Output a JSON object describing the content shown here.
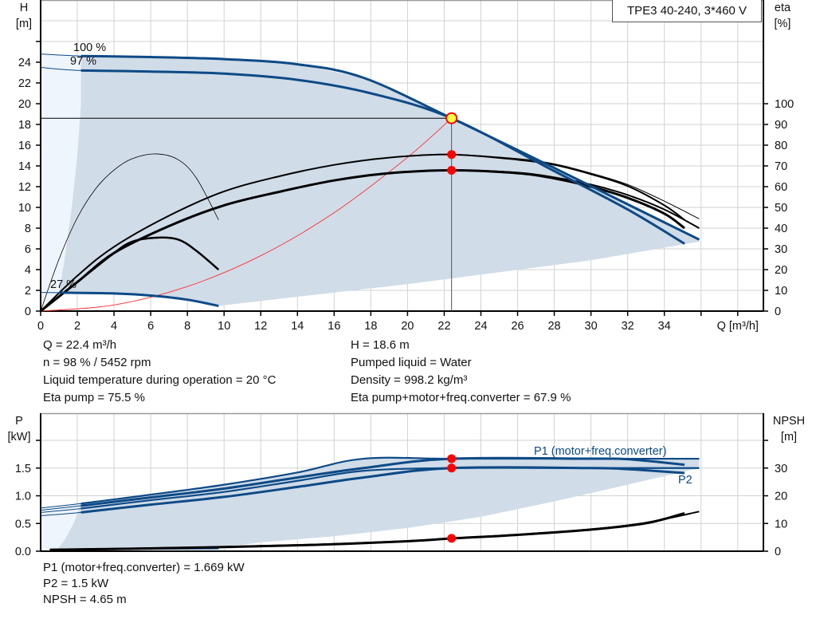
{
  "colors": {
    "head_curve": "#0d4a86",
    "eta_curve": "#000000",
    "system_curve": "#ff3030",
    "duty_point": "#ff0000",
    "duty_point_fill_top": "#ffff40",
    "operating_area": "#d0dce8",
    "extended_area": "#eef5fc",
    "grid": "#d2d2d2"
  },
  "chart_data": [
    {
      "type": "line",
      "title": "TPE3 40-240, 3*460 V",
      "xlabel": "Q [m³/h]",
      "ylabel_name": "H",
      "ylabel_unit": "[m]",
      "y2label_name": "eta",
      "y2label_unit": "[%]",
      "xlim": [
        0,
        39.4
      ],
      "ylim": [
        0,
        30
      ],
      "y2lim": [
        0,
        150
      ],
      "grid": true,
      "xticks": [
        0,
        2,
        4,
        6,
        8,
        10,
        12,
        14,
        16,
        18,
        20,
        22,
        24,
        26,
        28,
        30,
        32,
        34
      ],
      "yticks": [
        0,
        2,
        4,
        6,
        8,
        10,
        12,
        14,
        16,
        18,
        20,
        22,
        24
      ],
      "y2ticks": [
        0,
        10,
        20,
        30,
        40,
        50,
        60,
        70,
        80,
        90,
        100
      ],
      "head_curves": [
        {
          "label": "100 %",
          "points": [
            [
              0,
              24.8
            ],
            [
              2.2,
              24.6
            ],
            [
              6,
              24.5
            ],
            [
              10,
              24.3
            ],
            [
              14,
              23.8
            ],
            [
              17.6,
              22.5
            ],
            [
              22.4,
              18.6
            ],
            [
              28,
              13.8
            ],
            [
              32,
              10.3
            ],
            [
              35.9,
              6.9
            ]
          ]
        },
        {
          "label": "97 %",
          "points": [
            [
              0,
              23.5
            ],
            [
              2.2,
              23.2
            ],
            [
              6,
              23.1
            ],
            [
              10,
              22.9
            ],
            [
              14,
              22.3
            ],
            [
              18,
              21.0
            ],
            [
              22.4,
              18.6
            ],
            [
              28,
              13.5
            ],
            [
              32,
              9.8
            ],
            [
              35.1,
              6.5
            ]
          ]
        },
        {
          "label": "27 %",
          "points": [
            [
              0,
              1.8
            ],
            [
              1,
              1.78
            ],
            [
              4,
              1.7
            ],
            [
              6,
              1.5
            ],
            [
              8,
              1.1
            ],
            [
              9.7,
              0.5
            ]
          ]
        }
      ],
      "eta_curves": [
        {
          "points": [
            [
              0,
              0
            ],
            [
              2,
              17
            ],
            [
              4,
              31
            ],
            [
              7,
              46
            ],
            [
              10,
              57.7
            ],
            [
              13,
              65
            ],
            [
              16,
              70.5
            ],
            [
              19,
              74
            ],
            [
              22.4,
              75.5
            ],
            [
              26,
              73.5
            ],
            [
              28,
              71
            ],
            [
              30,
              66.5
            ],
            [
              32,
              61
            ],
            [
              34,
              53
            ],
            [
              35.9,
              44.5
            ]
          ]
        },
        {
          "points": [
            [
              0,
              0
            ],
            [
              2,
              17
            ],
            [
              4,
              31
            ],
            [
              7,
              46
            ],
            [
              10,
              57.7
            ],
            [
              13,
              65
            ],
            [
              16,
              70.5
            ],
            [
              19,
              74
            ],
            [
              22.4,
              75.5
            ],
            [
              26,
              73
            ],
            [
              28,
              70.5
            ],
            [
              30,
              66
            ],
            [
              32,
              60.3
            ],
            [
              34,
              51
            ],
            [
              35.1,
              44
            ]
          ]
        },
        {
          "points": [
            [
              0,
              0
            ],
            [
              2,
              14
            ],
            [
              4,
              28
            ],
            [
              7,
              41
            ],
            [
              10,
              51
            ],
            [
              13,
              57.5
            ],
            [
              16,
              63
            ],
            [
              19,
              66.5
            ],
            [
              22.4,
              67.9
            ],
            [
              26,
              66.5
            ],
            [
              28,
              64
            ],
            [
              30,
              60
            ],
            [
              32,
              54.6
            ],
            [
              34,
              47
            ],
            [
              35.1,
              40
            ]
          ]
        },
        {
          "points": [
            [
              0,
              0
            ],
            [
              2,
              14
            ],
            [
              4,
              28
            ],
            [
              7,
              41
            ],
            [
              10,
              51
            ],
            [
              13,
              57.5
            ],
            [
              16,
              63
            ],
            [
              19,
              66.5
            ],
            [
              22.4,
              67.9
            ],
            [
              26,
              66.8
            ],
            [
              28,
              64.5
            ],
            [
              30,
              61
            ],
            [
              32,
              56
            ],
            [
              34,
              49
            ],
            [
              35.9,
              40
            ]
          ]
        },
        {
          "points": [
            [
              0,
              0
            ],
            [
              1,
              25
            ],
            [
              2,
              45
            ],
            [
              3,
              59
            ],
            [
              4,
              68
            ],
            [
              5,
              73.5
            ],
            [
              6.3,
              75.8
            ],
            [
              7.5,
              73
            ],
            [
              8.5,
              64
            ],
            [
              9.7,
              44
            ]
          ]
        },
        {
          "points": [
            [
              0,
              0
            ],
            [
              2,
              14
            ],
            [
              4,
              28
            ],
            [
              5,
              33.5
            ],
            [
              6.3,
              35.4
            ],
            [
              7.5,
              34.5
            ],
            [
              8.5,
              29
            ],
            [
              9.7,
              20
            ]
          ]
        }
      ],
      "system_curve": {
        "points": [
          [
            0,
            0
          ],
          [
            4,
            0.59
          ],
          [
            8,
            2.37
          ],
          [
            12,
            5.34
          ],
          [
            16,
            9.49
          ],
          [
            20,
            14.83
          ],
          [
            22.4,
            18.6
          ]
        ]
      },
      "operating_area": [
        [
          2.2,
          24.6
        ],
        [
          6,
          24.5
        ],
        [
          10,
          24.3
        ],
        [
          14,
          23.8
        ],
        [
          17.6,
          22.5
        ],
        [
          22.4,
          18.6
        ],
        [
          28,
          13.8
        ],
        [
          32,
          10.3
        ],
        [
          35.9,
          6.9
        ],
        [
          35.9,
          6.7
        ],
        [
          30,
          4.9
        ],
        [
          20,
          2.6
        ],
        [
          9.9,
          0.55
        ],
        [
          9.7,
          0.5
        ],
        [
          8,
          1.1
        ],
        [
          6,
          1.5
        ],
        [
          4,
          1.7
        ],
        [
          1,
          1.75
        ],
        [
          1.3,
          5
        ],
        [
          1.7,
          10
        ],
        [
          2.0,
          15
        ],
        [
          2.2,
          20
        ],
        [
          2.2,
          23.2
        ]
      ],
      "extended_area": [
        [
          0,
          0
        ],
        [
          0,
          24.8
        ],
        [
          2.2,
          24.6
        ],
        [
          2.2,
          20
        ],
        [
          2.0,
          15
        ],
        [
          1.7,
          10
        ],
        [
          1.3,
          5
        ],
        [
          1,
          1.75
        ],
        [
          0.6,
          1.2
        ]
      ],
      "duty_point": {
        "Q": 22.4,
        "H": 18.6,
        "eta": [
          75.5,
          67.9
        ]
      }
    },
    {
      "type": "line",
      "xlabel": "",
      "ylabel_name": "P",
      "ylabel_unit": "[kW]",
      "y2label_name": "NPSH",
      "y2label_unit": "[m]",
      "xlim": [
        0,
        39.4
      ],
      "ylim": [
        0,
        2.49
      ],
      "y2lim": [
        0,
        49.8
      ],
      "grid": true,
      "yticks": [
        "0.0",
        "0.5",
        "1.0",
        "1.5"
      ],
      "y2ticks": [
        0,
        10,
        20,
        30
      ],
      "power_curves": [
        {
          "label": "P1 (motor+freq.converter)",
          "points": [
            [
              0,
              0.78
            ],
            [
              2.2,
              0.86
            ],
            [
              6,
              1.02
            ],
            [
              10,
              1.2
            ],
            [
              14,
              1.42
            ],
            [
              17.6,
              1.669
            ],
            [
              22.4,
              1.669
            ],
            [
              30,
              1.669
            ],
            [
              35.9,
              1.669
            ]
          ]
        },
        {
          "points": [
            [
              0,
              0.74
            ],
            [
              2.2,
              0.82
            ],
            [
              6,
              0.97
            ],
            [
              10,
              1.13
            ],
            [
              14,
              1.33
            ],
            [
              17.6,
              1.5
            ],
            [
              22.4,
              1.669
            ],
            [
              30,
              1.669
            ],
            [
              32,
              1.66
            ],
            [
              35.1,
              1.56
            ]
          ]
        },
        {
          "label": "P2",
          "points": [
            [
              0,
              0.7
            ],
            [
              2.2,
              0.77
            ],
            [
              6,
              0.92
            ],
            [
              10,
              1.07
            ],
            [
              14,
              1.27
            ],
            [
              17.6,
              1.45
            ],
            [
              22.4,
              1.5
            ],
            [
              30,
              1.5
            ],
            [
              35.9,
              1.5
            ]
          ]
        },
        {
          "points": [
            [
              0,
              0.64
            ],
            [
              2.2,
              0.7
            ],
            [
              6,
              0.84
            ],
            [
              10,
              0.98
            ],
            [
              14,
              1.16
            ],
            [
              17.6,
              1.33
            ],
            [
              22.4,
              1.5
            ],
            [
              30,
              1.5
            ],
            [
              32,
              1.48
            ],
            [
              35.1,
              1.41
            ]
          ]
        },
        {
          "points": [
            [
              0.5,
              0.03
            ],
            [
              4,
              0.04
            ],
            [
              9.7,
              0.05
            ]
          ]
        }
      ],
      "npsh_curves": [
        {
          "points": [
            [
              0.5,
              0.6
            ],
            [
              5,
              1.0
            ],
            [
              10,
              1.6
            ],
            [
              15,
              2.4
            ],
            [
              20,
              3.7
            ],
            [
              22.4,
              4.65
            ],
            [
              26,
              6.0
            ],
            [
              30,
              7.9
            ],
            [
              33,
              10.3
            ],
            [
              35.9,
              14.3
            ]
          ]
        },
        {
          "points": [
            [
              0.5,
              0.5
            ],
            [
              5,
              0.9
            ],
            [
              10,
              1.5
            ],
            [
              15,
              2.3
            ],
            [
              20,
              3.6
            ],
            [
              22.4,
              4.6
            ],
            [
              26,
              5.9
            ],
            [
              30,
              7.8
            ],
            [
              33,
              10.1
            ],
            [
              35.1,
              13.7
            ]
          ]
        }
      ],
      "operating_area": [
        [
          2.2,
          0.86
        ],
        [
          6,
          1.02
        ],
        [
          10,
          1.2
        ],
        [
          14,
          1.42
        ],
        [
          17.6,
          1.669
        ],
        [
          22.4,
          1.669
        ],
        [
          35.9,
          1.669
        ],
        [
          35.9,
          1.5
        ],
        [
          32,
          1.2
        ],
        [
          28,
          0.9
        ],
        [
          24,
          0.62
        ],
        [
          20,
          0.42
        ],
        [
          16,
          0.27
        ],
        [
          12,
          0.16
        ],
        [
          9.7,
          0.06
        ],
        [
          2,
          0.03
        ],
        [
          0.9,
          0.02
        ],
        [
          1.3,
          0.2
        ],
        [
          1.8,
          0.5
        ]
      ],
      "extended_area": [
        [
          0,
          0
        ],
        [
          0,
          0.78
        ],
        [
          2.2,
          0.86
        ],
        [
          1.8,
          0.5
        ],
        [
          1.3,
          0.2
        ],
        [
          0.9,
          0.02
        ]
      ],
      "duty_point": {
        "Q": 22.4,
        "P1": 1.669,
        "P2": 1.5,
        "NPSH": 4.65
      }
    }
  ],
  "info_top_left": [
    "Q = 22.4 m³/h",
    "n = 98 % / 5452 rpm",
    "Liquid temperature during operation = 20 °C",
    "Eta pump = 75.5 %"
  ],
  "info_top_right": [
    "H = 18.6 m",
    "Pumped liquid = Water",
    "Density = 998.2 kg/m³",
    "Eta pump+motor+freq.converter = 67.9 %"
  ],
  "info_bottom": [
    "P1 (motor+freq.converter) = 1.669 kW",
    "P2 = 1.5 kW",
    "NPSH = 4.65 m"
  ]
}
